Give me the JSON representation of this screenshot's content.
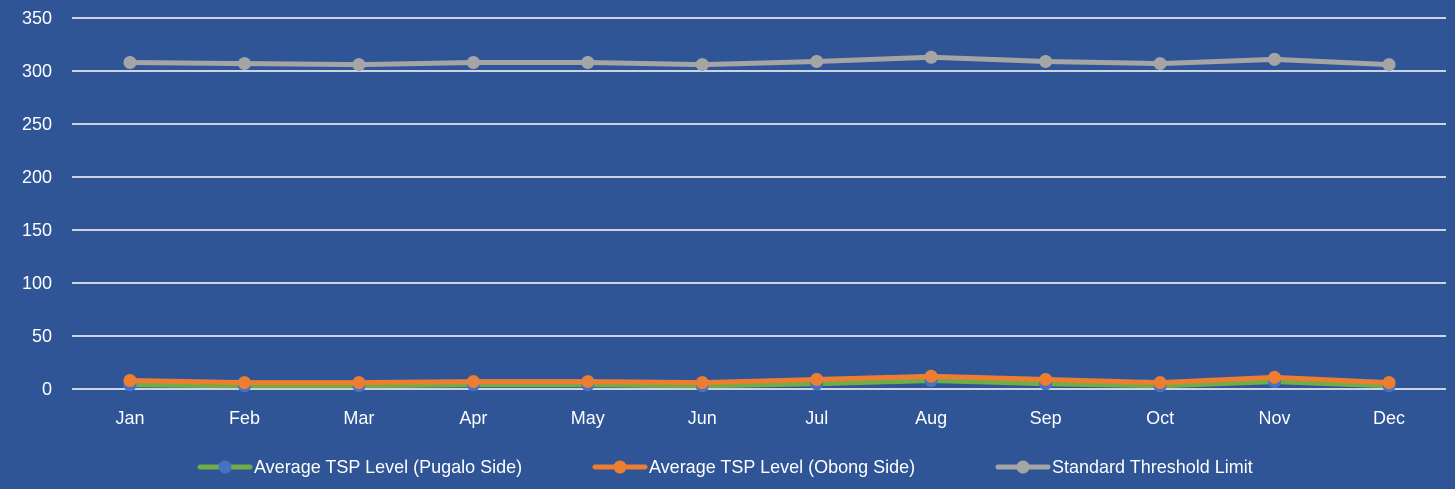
{
  "chart_data": {
    "type": "line",
    "title": "",
    "xlabel": "",
    "ylabel": "",
    "categories": [
      "Jan",
      "Feb",
      "Mar",
      "Apr",
      "May",
      "Jun",
      "Jul",
      "Aug",
      "Sep",
      "Oct",
      "Nov",
      "Dec"
    ],
    "ylim": [
      0,
      350
    ],
    "yticks": [
      0,
      50,
      100,
      150,
      200,
      250,
      300,
      350
    ],
    "grid": true,
    "legend_position": "bottom",
    "background_color": "#2F5597",
    "series": [
      {
        "name": "Average TSP Level (Pugalo Side)",
        "color": "#70AD47",
        "marker_color": "#4472C4",
        "values": [
          4,
          3,
          3,
          4,
          4,
          3,
          5,
          8,
          5,
          3,
          7,
          3
        ]
      },
      {
        "name": "Average TSP Level  (Obong Side)",
        "color": "#ED7D31",
        "marker_color": "#ED7D31",
        "values": [
          8,
          6,
          6,
          7,
          7,
          6,
          9,
          12,
          9,
          6,
          11,
          6
        ]
      },
      {
        "name": "Standard Threshold Limit",
        "color": "#A5A5A5",
        "marker_color": "#A5A5A5",
        "values": [
          308,
          307,
          306,
          308,
          308,
          306,
          309,
          313,
          309,
          307,
          311,
          306
        ]
      }
    ]
  }
}
